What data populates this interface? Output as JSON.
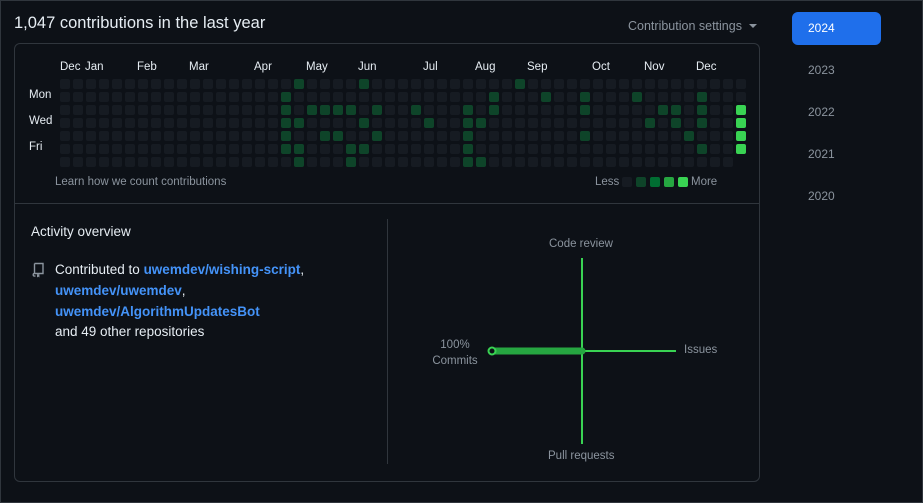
{
  "header": {
    "title": "1,047 contributions in the last year",
    "settings_label": "Contribution settings"
  },
  "calendar": {
    "months": [
      "Dec",
      "Jan",
      "Feb",
      "Mar",
      "Apr",
      "May",
      "Jun",
      "Jul",
      "Aug",
      "Sep",
      "Oct",
      "Nov",
      "Dec"
    ],
    "days": [
      "Mon",
      "Wed",
      "Fri"
    ],
    "learn_link": "Learn how we count contributions",
    "legend_less": "Less",
    "legend_more": "More",
    "level_colors": [
      "#161b22",
      "#0e4429",
      "#006d32",
      "#26a641",
      "#39d353"
    ]
  },
  "activity": {
    "title": "Activity overview",
    "contributed_prefix": "Contributed to ",
    "repos": [
      "uwemdev/wishing-script",
      "uwemdev/uwemdev",
      "uwemdev/AlgorithmUpdatesBot"
    ],
    "sep1": ",",
    "sep2": ",",
    "others": "and 49 other repositories",
    "axes": {
      "top": "Code review",
      "right": "Issues",
      "bottom": "Pull requests",
      "left_pct": "100%",
      "left": "Commits"
    },
    "values": {
      "commits": 100,
      "issues": 0,
      "code_review": 0,
      "pull_requests": 0
    }
  },
  "years": [
    "2024",
    "2023",
    "2022",
    "2021",
    "2020"
  ],
  "selected_year": "2024"
}
